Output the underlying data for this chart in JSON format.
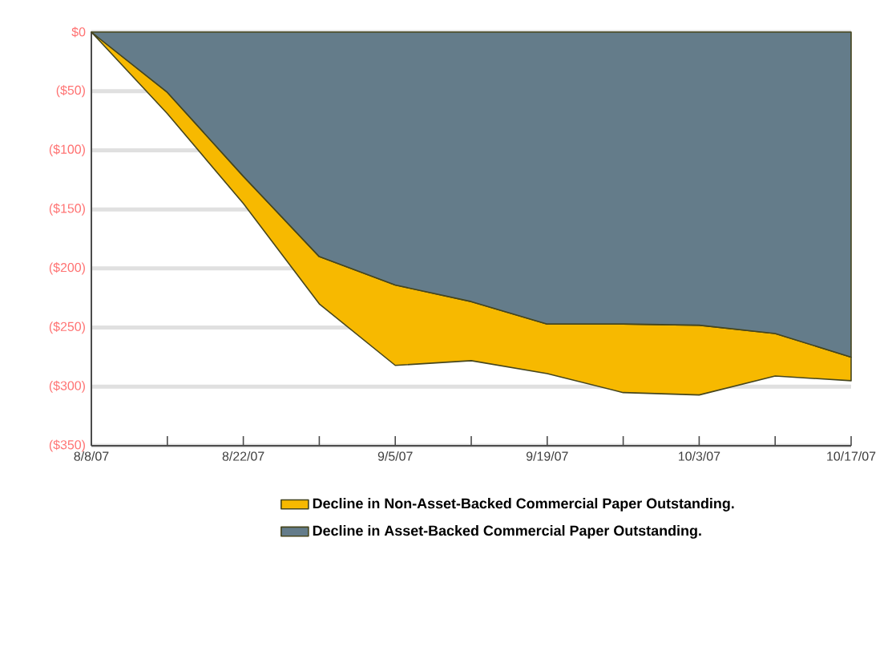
{
  "chart_data": {
    "type": "area",
    "stacked": true,
    "legend": "bottom",
    "grid": "y",
    "categories": [
      "8/8/07",
      null,
      "8/22/07",
      null,
      "9/5/07",
      null,
      "9/19/07",
      null,
      "10/3/07",
      null,
      "10/17/07"
    ],
    "ylim": [
      -350,
      0
    ],
    "yticks": [
      {
        "value": 0,
        "label": "$0"
      },
      {
        "value": -50,
        "label": "($50)"
      },
      {
        "value": -100,
        "label": "($100)"
      },
      {
        "value": -150,
        "label": "($150)"
      },
      {
        "value": -200,
        "label": "($200)"
      },
      {
        "value": -250,
        "label": "($250)"
      },
      {
        "value": -300,
        "label": "($300)"
      },
      {
        "value": -350,
        "label": "($350)"
      }
    ],
    "series": [
      {
        "name": "Decline in Asset-Backed Commercial Paper Outstanding.",
        "color": "#647c8a",
        "values": [
          0,
          -51,
          -122,
          -190,
          -214,
          -228,
          -247,
          -247,
          -248,
          -255,
          -275
        ]
      },
      {
        "name": "Decline in Non-Asset-Backed Commercial Paper Outstanding.",
        "color": "#f7b900",
        "values": [
          0,
          -18,
          -23,
          -40,
          -68,
          -50,
          -42,
          -58,
          -59,
          -36,
          -20
        ]
      }
    ]
  }
}
